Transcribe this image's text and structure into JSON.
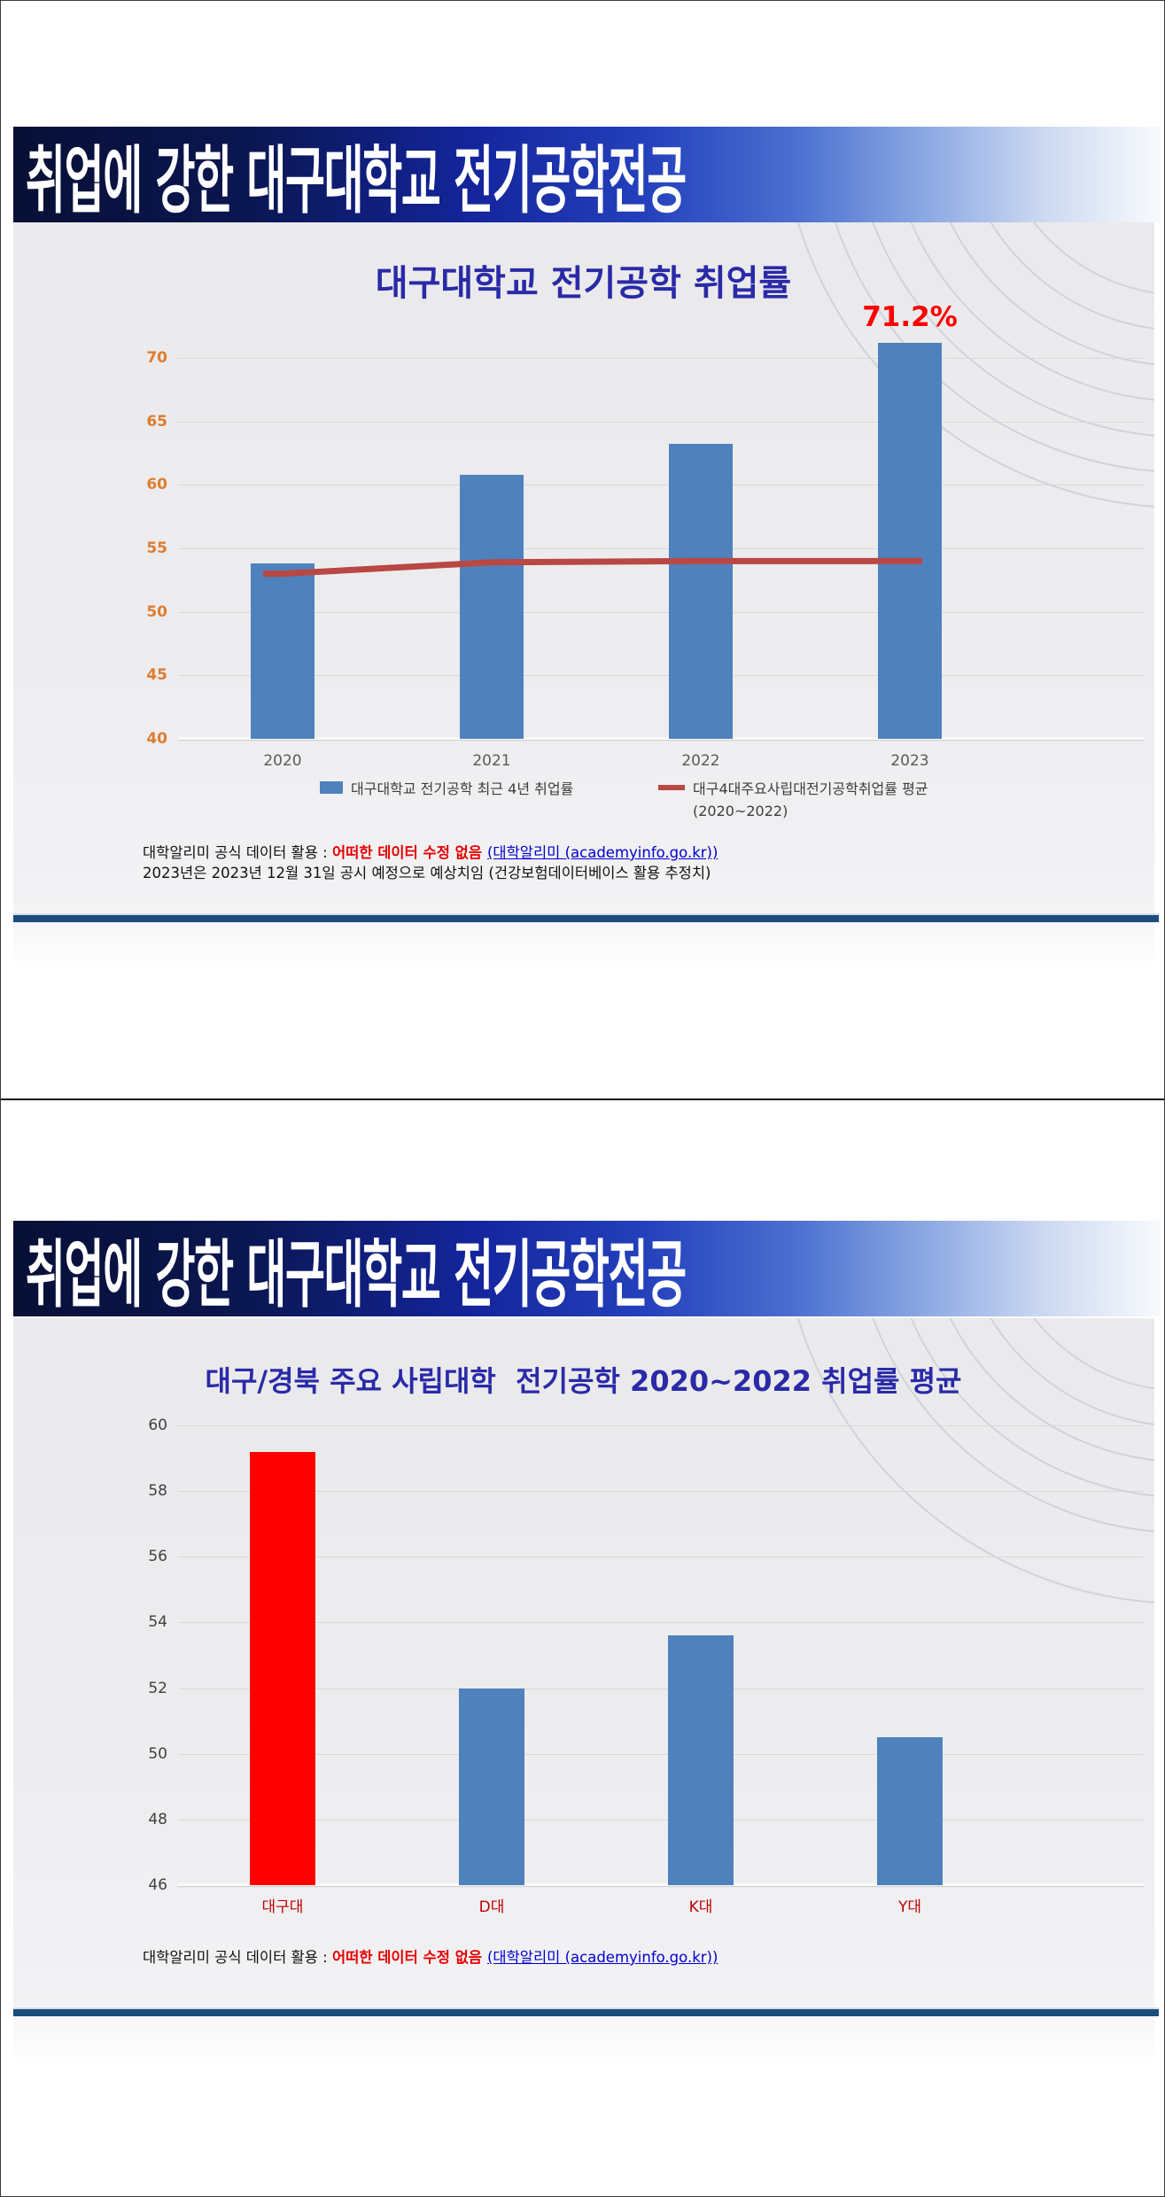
{
  "slides": [
    {
      "banner": "취업에 강한 대구대학교 전기공학전공",
      "footer": {
        "prefix": "대학알리미 공식 데이터 활용 : ",
        "highlight": "어떠한 데이터 수정 없음",
        "link": "(대학알리미 (academyinfo.go.kr))",
        "line2": "2023년은 2023년 12월 31일 공시 예정으로 예상치임 (건강보험데이터베이스 활용 추정치)"
      }
    },
    {
      "banner": "취업에 강한 대구대학교 전기공학전공",
      "footer": {
        "prefix": "대학알리미 공식 데이터 활용 : ",
        "highlight": "어떠한 데이터 수정 없음",
        "link": "(대학알리미 (academyinfo.go.kr))"
      }
    }
  ],
  "chart_data": [
    {
      "type": "bar",
      "title": "대구대학교 전기공학 취업률",
      "categories": [
        "2020",
        "2021",
        "2022",
        "2023"
      ],
      "series": [
        {
          "name": "대구대학교 전기공학 최근 4년 취업률",
          "type": "bar",
          "color": "#4f81bd",
          "values": [
            53.8,
            60.8,
            63.2,
            71.2
          ]
        },
        {
          "name": "대구4대주요사립대전기공학취업률 평균",
          "name_sub": "(2020~2022)",
          "type": "line",
          "color": "#b94743",
          "values": [
            53.0,
            53.9,
            54.0,
            54.0
          ]
        }
      ],
      "ylim": [
        40,
        70
      ],
      "yticks": [
        40,
        45,
        50,
        55,
        60,
        65,
        70
      ],
      "tick_color": "#dd7c30",
      "tick_bold": true,
      "xtick_color": "#5a5a5a",
      "grid": true,
      "legend_position": "bottom",
      "annotation": {
        "text": "71.2%",
        "index": 3,
        "color": "#ff0000"
      }
    },
    {
      "type": "bar",
      "title": "대구/경북 주요 사립대학  전기공학 2020~2022 취업률 평균",
      "categories": [
        "대구대",
        "D대",
        "K대",
        "Y대"
      ],
      "values": [
        59.2,
        52.0,
        53.6,
        50.5
      ],
      "bar_colors": [
        "#ff0000",
        "#4f81bd",
        "#4f81bd",
        "#4f81bd"
      ],
      "ylim": [
        46,
        60
      ],
      "yticks": [
        46,
        48,
        50,
        52,
        54,
        56,
        58,
        60
      ],
      "tick_color": "#404040",
      "tick_bold": false,
      "xtick_color": "#c00000",
      "grid": true,
      "legend_position": "none"
    }
  ]
}
